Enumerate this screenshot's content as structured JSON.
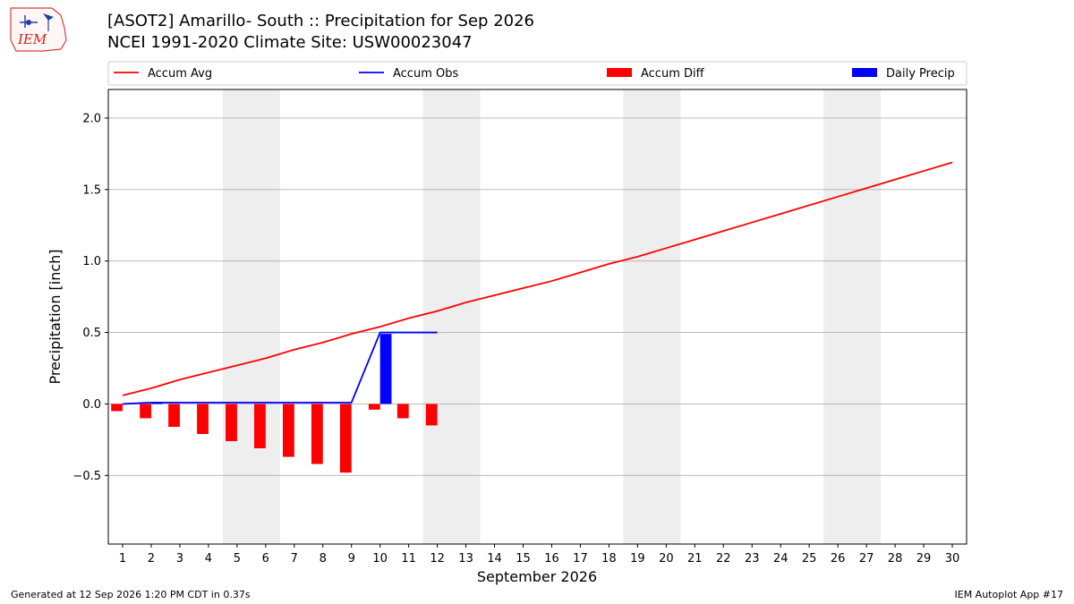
{
  "header": {
    "logo_text": "IEM",
    "title_line1": "[ASOT2] Amarillo- South :: Precipitation for Sep 2026",
    "title_line2": "NCEI 1991-2020 Climate Site: USW00023047"
  },
  "footer": {
    "left": "Generated at 12 Sep 2026 1:20 PM CDT in 0.37s",
    "right": "IEM Autoplot App #17"
  },
  "colors": {
    "accum_avg": "#ff0000",
    "accum_obs": "#0000ff",
    "accum_diff": "#ff0000",
    "daily_precip": "#0000ff",
    "weekend_shade": "#eeeeee",
    "grid": "#b0b0b0"
  },
  "chart_data": {
    "type": "bar",
    "xlabel": "September 2026",
    "ylabel": "Precipitation [inch]",
    "xlim": [
      0.5,
      30.5
    ],
    "ylim": [
      -0.98,
      2.2
    ],
    "yticks": [
      -0.5,
      0.0,
      0.5,
      1.0,
      1.5,
      2.0
    ],
    "ytick_labels": [
      "−0.5",
      "0.0",
      "0.5",
      "1.0",
      "1.5",
      "2.0"
    ],
    "x": [
      1,
      2,
      3,
      4,
      5,
      6,
      7,
      8,
      9,
      10,
      11,
      12,
      13,
      14,
      15,
      16,
      17,
      18,
      19,
      20,
      21,
      22,
      23,
      24,
      25,
      26,
      27,
      28,
      29,
      30
    ],
    "grid": "y",
    "legend_position": "top",
    "weekend_spans": [
      [
        4.5,
        6.5
      ],
      [
        11.5,
        13.5
      ],
      [
        18.5,
        20.5
      ],
      [
        25.5,
        27.5
      ]
    ],
    "series": [
      {
        "name": "Accum Avg",
        "kind": "line",
        "x": [
          1,
          2,
          3,
          4,
          5,
          6,
          7,
          8,
          9,
          10,
          11,
          12,
          13,
          14,
          15,
          16,
          17,
          18,
          19,
          20,
          21,
          22,
          23,
          24,
          25,
          26,
          27,
          28,
          29,
          30
        ],
        "values": [
          0.06,
          0.11,
          0.17,
          0.22,
          0.27,
          0.32,
          0.38,
          0.43,
          0.49,
          0.54,
          0.6,
          0.65,
          0.71,
          0.76,
          0.81,
          0.86,
          0.92,
          0.98,
          1.03,
          1.09,
          1.15,
          1.21,
          1.27,
          1.33,
          1.39,
          1.45,
          1.51,
          1.57,
          1.63,
          1.69
        ]
      },
      {
        "name": "Accum Obs",
        "kind": "line",
        "x": [
          1,
          2,
          3,
          4,
          5,
          6,
          7,
          8,
          9,
          10,
          11,
          12
        ],
        "values": [
          0.0,
          0.01,
          0.01,
          0.01,
          0.01,
          0.01,
          0.01,
          0.01,
          0.01,
          0.5,
          0.5,
          0.5
        ]
      },
      {
        "name": "Accum Diff",
        "kind": "bar",
        "x": [
          1,
          2,
          3,
          4,
          5,
          6,
          7,
          8,
          9,
          10,
          11,
          12
        ],
        "values": [
          -0.05,
          -0.1,
          -0.16,
          -0.21,
          -0.26,
          -0.31,
          -0.37,
          -0.42,
          -0.48,
          -0.04,
          -0.1,
          -0.15
        ]
      },
      {
        "name": "Daily Precip",
        "kind": "bar",
        "x": [
          1,
          2,
          3,
          4,
          5,
          6,
          7,
          8,
          9,
          10,
          11,
          12
        ],
        "values": [
          0.0,
          0.01,
          0.0,
          0.0,
          0.0,
          0.0,
          0.0,
          0.0,
          0.0,
          0.49,
          0.0,
          0.0
        ]
      }
    ]
  }
}
